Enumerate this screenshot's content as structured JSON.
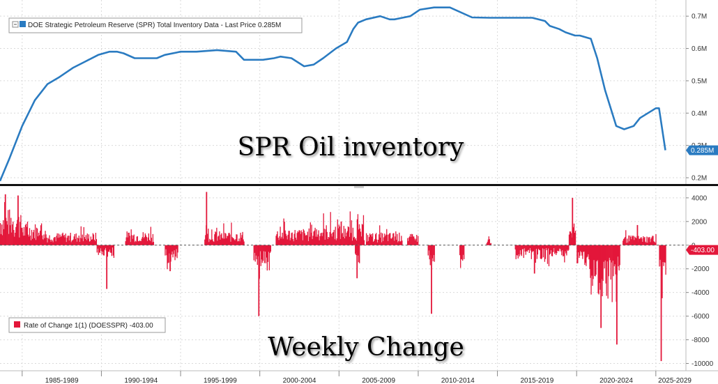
{
  "chart_data": [
    {
      "type": "line",
      "legend": "DOE Strategic Petroleum Reserve (SPR) Total Inventory Data - Last Price 0.285M",
      "overlay_title": "SPR Oil inventory",
      "y_ticks": [
        0.2,
        0.3,
        0.4,
        0.5,
        0.6,
        0.7
      ],
      "y_tick_labels": [
        "0.2M",
        "0.3M",
        "0.4M",
        "0.5M",
        "0.6M",
        "0.7M"
      ],
      "ylim": [
        0.185,
        0.75
      ],
      "last_value_label": "0.285M",
      "last_value": 0.285,
      "line_color": "#2a7bc1",
      "x": [
        1983.6,
        1984.2,
        1985.0,
        1985.8,
        1986.6,
        1987.3,
        1988.2,
        1989.0,
        1989.8,
        1990.5,
        1991.0,
        1991.4,
        1992.1,
        1993.5,
        1994.0,
        1995.0,
        1996.0,
        1997.3,
        1998.5,
        1999.0,
        1999.8,
        2000.2,
        2000.9,
        2001.3,
        2002.0,
        2002.8,
        2003.4,
        2004.0,
        2004.8,
        2005.5,
        2005.9,
        2006.2,
        2006.7,
        2007.6,
        2008.2,
        2008.5,
        2009.0,
        2009.5,
        2010.1,
        2011.0,
        2012.0,
        2013.4,
        2014.5,
        2015.8,
        2016.3,
        2017.2,
        2018.0,
        2018.3,
        2018.9,
        2019.3,
        2019.9,
        2020.2,
        2020.9,
        2021.3,
        2021.8,
        2022.5,
        2023.0,
        2023.6,
        2024.0,
        2025.0,
        2025.2,
        2025.6
      ],
      "y": [
        0.19,
        0.26,
        0.36,
        0.44,
        0.49,
        0.51,
        0.54,
        0.56,
        0.58,
        0.59,
        0.59,
        0.585,
        0.57,
        0.57,
        0.58,
        0.59,
        0.59,
        0.595,
        0.59,
        0.565,
        0.565,
        0.565,
        0.57,
        0.575,
        0.57,
        0.545,
        0.55,
        0.57,
        0.6,
        0.62,
        0.66,
        0.68,
        0.69,
        0.7,
        0.69,
        0.69,
        0.695,
        0.7,
        0.72,
        0.727,
        0.727,
        0.696,
        0.695,
        0.695,
        0.695,
        0.695,
        0.685,
        0.67,
        0.66,
        0.65,
        0.64,
        0.64,
        0.63,
        0.57,
        0.47,
        0.36,
        0.35,
        0.36,
        0.385,
        0.415,
        0.415,
        0.285
      ]
    },
    {
      "type": "bar",
      "legend": "Rate of Change 1(1) (DOESSPR) -403.00",
      "overlay_title": "Weekly Change",
      "y_ticks": [
        -10000,
        -8000,
        -6000,
        -4000,
        -2000,
        0,
        2000,
        4000
      ],
      "y_tick_labels": [
        "-10000",
        "-8000",
        "-6000",
        "-4000",
        "-2000",
        "0",
        "2000",
        "4000"
      ],
      "ylim": [
        -10500,
        4700
      ],
      "last_value_label": "-403.00",
      "last_value": -403,
      "bar_color": "#e3173a",
      "weekly_change_ranges": [
        {
          "start": 1983.6,
          "end": 1984.4,
          "amp": 2600,
          "spike": [
            1983.9,
            4300
          ]
        },
        {
          "start": 1984.4,
          "end": 1985.0,
          "amp": 2200,
          "spike": [
            1984.7,
            4200
          ]
        },
        {
          "start": 1985.0,
          "end": 1986.3,
          "amp": 1600
        },
        {
          "start": 1986.3,
          "end": 1989.7,
          "amp": 900
        },
        {
          "start": 1989.7,
          "end": 1990.8,
          "amp": -800,
          "spike": [
            1990.3,
            -3700
          ]
        },
        {
          "start": 1991.5,
          "end": 1993.3,
          "amp": 1000
        },
        {
          "start": 1994.0,
          "end": 1994.8,
          "amp": -1300,
          "spike": [
            1994.3,
            -2200
          ]
        },
        {
          "start": 1996.5,
          "end": 1999.0,
          "amp": 1000,
          "spike": [
            1996.6,
            4500
          ]
        },
        {
          "start": 1999.6,
          "end": 2000.7,
          "amp": -1500,
          "spike": [
            1999.9,
            -6000
          ]
        },
        {
          "start": 2001.0,
          "end": 2003.2,
          "amp": 1200
        },
        {
          "start": 2003.2,
          "end": 2006.6,
          "amp": 1500,
          "spike": [
            2005.1,
            2000
          ]
        },
        {
          "start": 2006.0,
          "end": 2006.3,
          "amp": -1500,
          "spike": [
            2006.1,
            -2800
          ]
        },
        {
          "start": 2006.7,
          "end": 2009.0,
          "amp": 900
        },
        {
          "start": 2009.3,
          "end": 2010.0,
          "amp": 800
        },
        {
          "start": 2010.6,
          "end": 2011.0,
          "amp": -1200,
          "spike": [
            2010.8,
            -5800
          ]
        },
        {
          "start": 2012.6,
          "end": 2012.9,
          "amp": -1200
        },
        {
          "start": 2014.3,
          "end": 2014.6,
          "amp": 500
        },
        {
          "start": 2016.1,
          "end": 2018.5,
          "amp": -1000,
          "spike": [
            2017.3,
            -2400
          ]
        },
        {
          "start": 2018.5,
          "end": 2019.5,
          "amp": -800
        },
        {
          "start": 2019.5,
          "end": 2019.9,
          "amp": 1800,
          "spike": [
            2019.7,
            4000
          ]
        },
        {
          "start": 2020.0,
          "end": 2020.8,
          "amp": -1500
        },
        {
          "start": 2020.8,
          "end": 2022.3,
          "amp": -3500,
          "spike": [
            2021.5,
            -7000
          ]
        },
        {
          "start": 2022.3,
          "end": 2022.7,
          "amp": -2500,
          "spike": [
            2022.5,
            -8400
          ]
        },
        {
          "start": 2022.9,
          "end": 2025.0,
          "amp": 700,
          "spike": [
            2023.8,
            1700
          ]
        },
        {
          "start": 2025.2,
          "end": 2025.6,
          "amp": -2500,
          "spike": [
            2025.3,
            -9800
          ]
        }
      ]
    }
  ],
  "x_axis": {
    "xlim": [
      1983.6,
      2026.9
    ],
    "labels": [
      "1985-1989",
      "1990-1994",
      "1995-1999",
      "2000-2004",
      "2005-2009",
      "2010-2014",
      "2015-2019",
      "2020-2024",
      "2025-2029"
    ],
    "centers": [
      1987.5,
      1992.5,
      1997.5,
      2002.5,
      2007.5,
      2012.5,
      2017.5,
      2022.5,
      2026.2
    ],
    "boundaries": [
      1985.0,
      1990.0,
      1995.0,
      2000.0,
      2005.0,
      2010.0,
      2015.0,
      2020.0,
      2025.0
    ]
  }
}
